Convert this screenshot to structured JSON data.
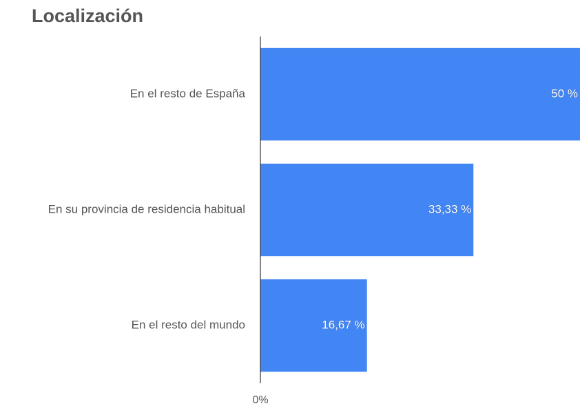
{
  "chart_data": {
    "type": "hbar",
    "title": "Localización",
    "categories": [
      "En el resto de España",
      "En su provincia de residencia habitual",
      "En el resto del mundo"
    ],
    "values": [
      50,
      33.33,
      16.67
    ],
    "value_labels": [
      "50 %",
      "33,33 %",
      "16,67 %"
    ],
    "color": "#4285f4",
    "xlim": [
      0,
      50
    ],
    "xticks": [
      {
        "value": 0,
        "label": "0%"
      }
    ]
  }
}
